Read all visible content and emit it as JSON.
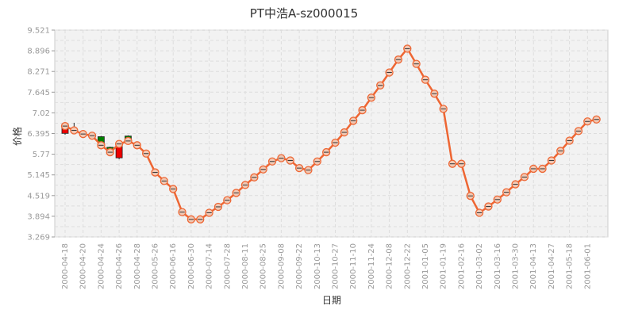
{
  "chart_data": {
    "type": "line",
    "title": "PT中浩A-sz000015",
    "xlabel": "日期",
    "ylabel": "价格",
    "ylim": [
      3.269,
      9.521
    ],
    "y_ticks": [
      "9.521",
      "8.896",
      "8.271",
      "7.645",
      "7.02",
      "6.395",
      "5.77",
      "5.145",
      "4.519",
      "3.894",
      "3.269"
    ],
    "x_tick_labels": [
      "2000-04-18",
      "2000-04-20",
      "2000-04-24",
      "2000-04-26",
      "2000-04-28",
      "2000-05-26",
      "2000-06-16",
      "2000-06-30",
      "2000-07-14",
      "2000-07-28",
      "2000-08-11",
      "2000-08-25",
      "2000-09-08",
      "2000-09-22",
      "2000-10-13",
      "2000-10-27",
      "2000-11-10",
      "2000-11-24",
      "2000-12-08",
      "2000-12-22",
      "2001-01-05",
      "2001-01-19",
      "2001-02-16",
      "2001-03-02",
      "2001-03-16",
      "2001-03-30",
      "2001-04-13",
      "2001-04-27",
      "2001-05-18",
      "2001-06-01"
    ],
    "grid": true,
    "legend": "none",
    "colors": {
      "line": "#ee6633",
      "up": "#ee0000",
      "down": "#008000",
      "marker_fill": "#f0c8b4"
    },
    "series": [
      {
        "values": [
          6.62,
          6.49,
          6.38,
          6.33,
          6.04,
          5.83,
          6.08,
          6.17,
          6.04,
          5.79,
          5.22,
          4.96,
          4.72,
          4.02,
          3.8,
          3.8,
          4.0,
          4.18,
          4.38,
          4.6,
          4.84,
          5.07,
          5.31,
          5.55,
          5.65,
          5.58,
          5.35,
          5.29,
          5.55,
          5.83,
          6.12,
          6.43,
          6.78,
          7.1,
          7.48,
          7.85,
          8.24,
          8.63,
          8.96,
          8.5,
          8.02,
          7.6,
          7.14,
          5.48,
          5.48,
          4.51,
          4.0,
          4.19,
          4.4,
          4.62,
          4.86,
          5.08,
          5.33,
          5.33,
          5.58,
          5.87,
          6.18,
          6.47,
          6.76,
          6.82
        ]
      }
    ],
    "candles": [
      {
        "index": 0,
        "open": 6.4,
        "close": 6.68,
        "high": 6.72,
        "low": 6.36
      },
      {
        "index": 1,
        "open": 6.45,
        "close": 6.47,
        "high": 6.72,
        "low": 6.4
      },
      {
        "index": 2,
        "open": 6.35,
        "close": 6.37,
        "high": 6.5,
        "low": 6.3
      },
      {
        "index": 3,
        "open": 6.3,
        "close": 6.32,
        "high": 6.42,
        "low": 6.25
      },
      {
        "index": 4,
        "open": 6.3,
        "close": 6.02,
        "high": 6.32,
        "low": 6.0
      },
      {
        "index": 5,
        "open": 5.98,
        "close": 5.78,
        "high": 6.0,
        "low": 5.74
      },
      {
        "index": 6,
        "open": 5.66,
        "close": 6.06,
        "high": 6.08,
        "low": 5.62
      },
      {
        "index": 7,
        "open": 6.32,
        "close": 6.15,
        "high": 6.34,
        "low": 6.12
      },
      {
        "index": 8,
        "open": 6.02,
        "close": 6.04,
        "high": 6.12,
        "low": 5.96
      }
    ]
  }
}
